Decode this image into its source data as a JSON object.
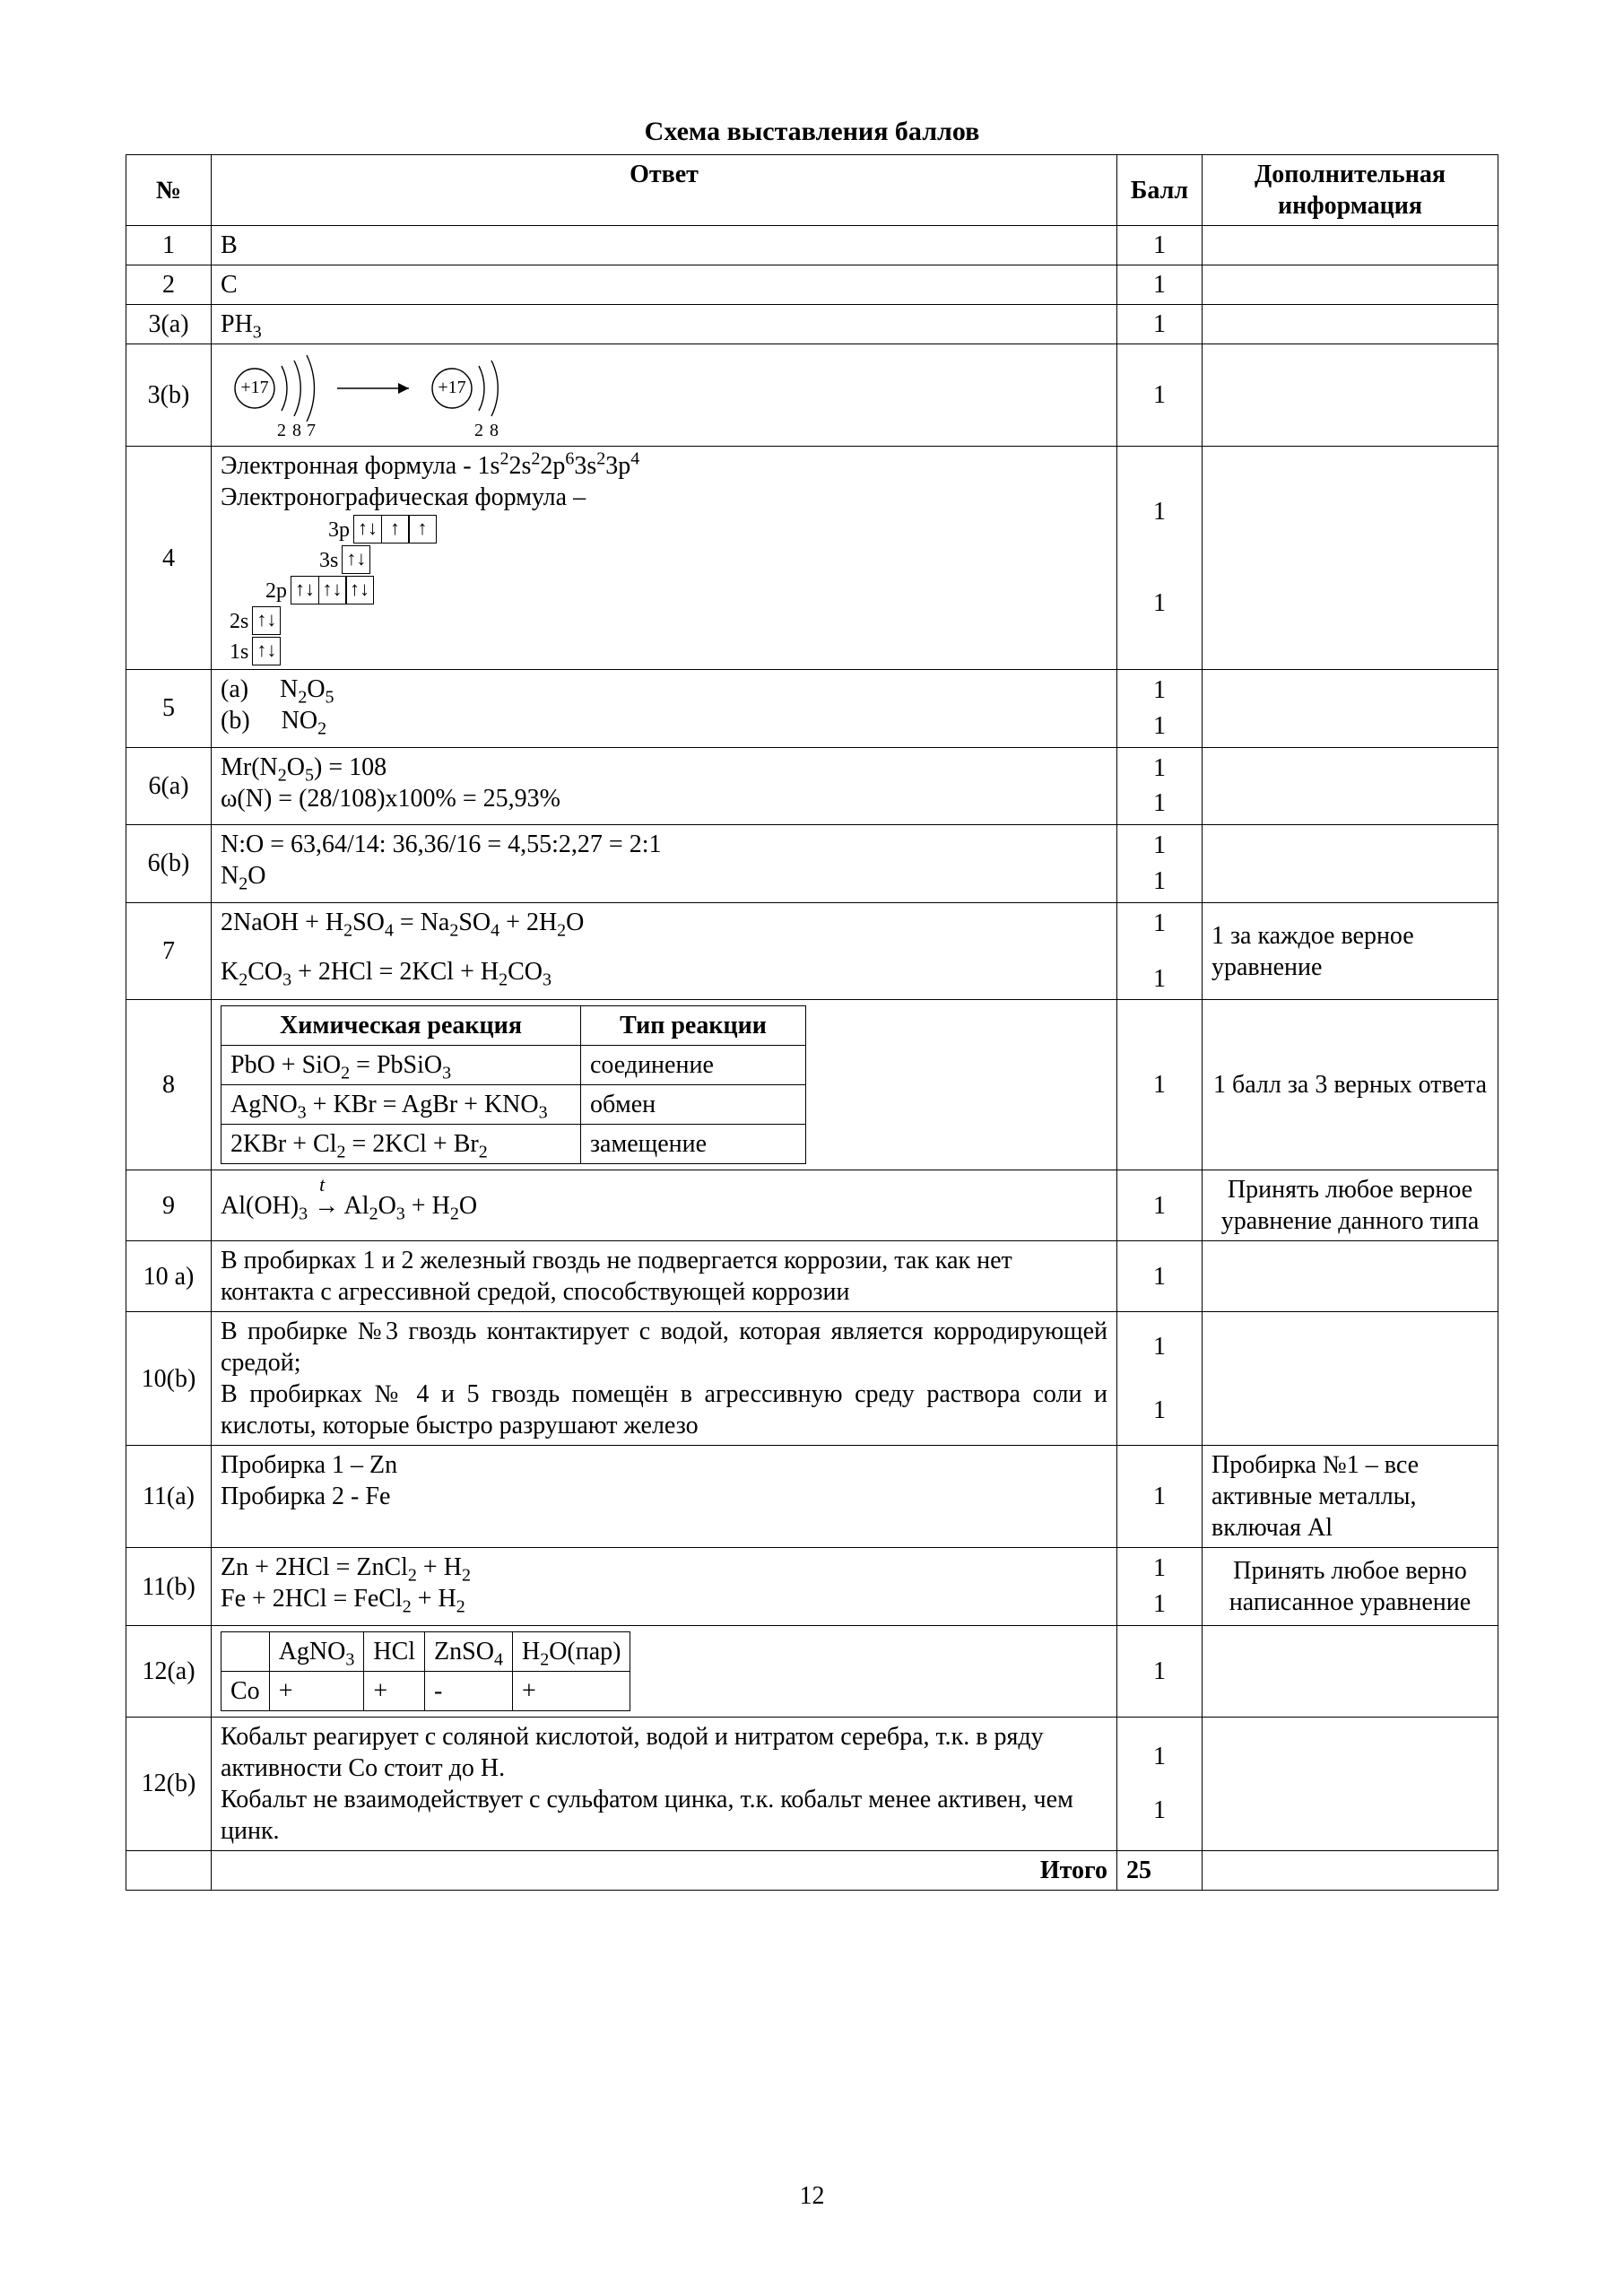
{
  "title": "Схема выставления баллов",
  "page_number": "12",
  "header": {
    "num": "№",
    "answer": "Ответ",
    "points": "Балл",
    "info": "Дополнительная информация"
  },
  "total": {
    "label": "Итого",
    "value": "25"
  },
  "rows": {
    "r1": {
      "num": "1",
      "ans": "В",
      "pts": "1",
      "info": ""
    },
    "r2": {
      "num": "2",
      "ans": "С",
      "pts": "1",
      "info": ""
    },
    "r3a": {
      "num": "3(a)",
      "ans": "PH₃",
      "pts": "1",
      "info": ""
    },
    "r3b": {
      "num": "3(b)",
      "atom_nuc": "+17",
      "shells1": [
        "2",
        "8",
        "7"
      ],
      "shells2": [
        "2",
        "8"
      ],
      "pts": "1",
      "info": ""
    },
    "r4": {
      "num": "4",
      "line1": "Электронная формула - 1s²2s²2p⁶3s²3p⁴",
      "line2": "Электронографическая формула –",
      "orbitals": [
        {
          "label": "3p",
          "cells": [
            "↑↓",
            "↑",
            "↑"
          ]
        },
        {
          "label": "3s",
          "cells": [
            "↑↓"
          ]
        },
        {
          "label": "2p",
          "cells": [
            "↑↓",
            "↑↓",
            "↑↓"
          ]
        },
        {
          "label": "2s",
          "cells": [
            "↑↓"
          ]
        },
        {
          "label": "1s",
          "cells": [
            "↑↓"
          ]
        }
      ],
      "pts": [
        "1",
        "1"
      ],
      "info": ""
    },
    "r5": {
      "num": "5",
      "a_label": "(а)",
      "a": "N₂O₅",
      "b_label": "(b)",
      "b": "NO₂",
      "pts": [
        "1",
        "1"
      ],
      "info": ""
    },
    "r6a": {
      "num": "6(a)",
      "l1": "Mr(N₂O₅) = 108",
      "l2": "ω(N) = (28/108)x100% = 25,93%",
      "pts": [
        "1",
        "1"
      ],
      "info": ""
    },
    "r6b": {
      "num": "6(b)",
      "l1": "N:O = 63,64/14: 36,36/16 = 4,55:2,27 = 2:1",
      "l2": "N₂O",
      "pts": [
        "1",
        "1"
      ],
      "info": ""
    },
    "r7": {
      "num": "7",
      "l1": "2NaOH + H₂SO₄ = Na₂SO₄ + 2H₂O",
      "l2": "K₂CO₃ + 2HCl = 2KCl + H₂CO₃",
      "pts": [
        "1",
        "1"
      ],
      "info": "1 за каждое верное уравнение"
    },
    "r8": {
      "num": "8",
      "h1": "Химическая реакция",
      "h2": "Тип реакции",
      "rows": [
        [
          "PbO + SiO₂ = PbSiO₃",
          "соединение"
        ],
        [
          "AgNO₃ + KBr = AgBr + KNO₃",
          "обмен"
        ],
        [
          "2KBr + Cl₂ = 2KCl + Br₂",
          "замещение"
        ]
      ],
      "pts": "1",
      "info": "1 балл за 3 верных ответа"
    },
    "r9": {
      "num": "9",
      "eq": "Al(OH)₃ → Al₂O₃ + H₂O",
      "cond": "t",
      "pts": "1",
      "info": "Принять любое верное уравнение данного типа"
    },
    "r10a": {
      "num": "10 а)",
      "text": "В пробирках 1 и 2 железный гвоздь не подвергается коррозии, так как нет контакта с агрессивной средой, способствующей коррозии",
      "pts": "1",
      "info": ""
    },
    "r10b": {
      "num": "10(b)",
      "p1": "В пробирке №3 гвоздь контактирует с водой, которая является корродирующей средой;",
      "p2": "В пробирках № 4 и 5 гвоздь помещён в агрессивную среду раствора соли и кислоты, которые быстро разрушают железо",
      "pts": [
        "1",
        "1"
      ],
      "info": ""
    },
    "r11a": {
      "num": "11(a)",
      "l1": "Пробирка 1 – Zn",
      "l2": "Пробирка 2 - Fe",
      "pts": "1",
      "info": "Пробирка №1 – все активные металлы, включая Al"
    },
    "r11b": {
      "num": "11(b)",
      "l1": "Zn + 2HCl = ZnCl₂ + H₂",
      "l2": "Fe + 2HCl = FeCl₂ + H₂",
      "pts": [
        "1",
        "1"
      ],
      "info": "Принять любое верно написанное уравнение"
    },
    "r12a": {
      "num": "12(a)",
      "cols": [
        "",
        "AgNO₃",
        "HCl",
        "ZnSO₄",
        "H₂O(пар)"
      ],
      "row": [
        "Co",
        "+",
        "+",
        "-",
        "+"
      ],
      "pts": "1",
      "info": ""
    },
    "r12b": {
      "num": "12(b)",
      "p1": "Кобальт реагирует с соляной кислотой, водой и нитратом серебра,  т.к. в ряду активности Со стоит до Н.",
      "p2": "Кобальт не взаимодействует с сульфатом цинка, т.к. кобальт менее активен, чем цинк.",
      "pts": [
        "1",
        "1"
      ],
      "info": ""
    }
  }
}
